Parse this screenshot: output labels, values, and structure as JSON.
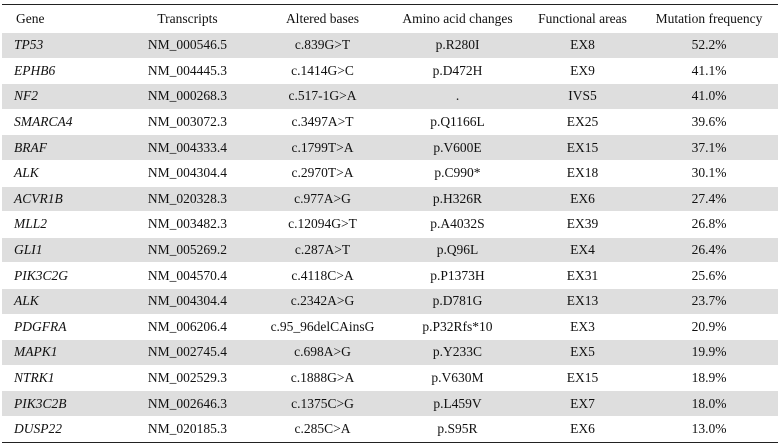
{
  "table": {
    "headers": [
      "Gene",
      "Transcripts",
      "Altered bases",
      "Amino acid changes",
      "Functional areas",
      "Mutation frequency"
    ],
    "rows": [
      [
        "TP53",
        "NM_000546.5",
        "c.839G>T",
        "p.R280I",
        "EX8",
        "52.2%"
      ],
      [
        "EPHB6",
        "NM_004445.3",
        "c.1414G>C",
        "p.D472H",
        "EX9",
        "41.1%"
      ],
      [
        "NF2",
        "NM_000268.3",
        "c.517-1G>A",
        ".",
        "IVS5",
        "41.0%"
      ],
      [
        "SMARCA4",
        "NM_003072.3",
        "c.3497A>T",
        "p.Q1166L",
        "EX25",
        "39.6%"
      ],
      [
        "BRAF",
        "NM_004333.4",
        "c.1799T>A",
        "p.V600E",
        "EX15",
        "37.1%"
      ],
      [
        "ALK",
        "NM_004304.4",
        "c.2970T>A",
        "p.C990*",
        "EX18",
        "30.1%"
      ],
      [
        "ACVR1B",
        "NM_020328.3",
        "c.977A>G",
        "p.H326R",
        "EX6",
        "27.4%"
      ],
      [
        "MLL2",
        "NM_003482.3",
        "c.12094G>T",
        "p.A4032S",
        "EX39",
        "26.8%"
      ],
      [
        "GLI1",
        "NM_005269.2",
        "c.287A>T",
        "p.Q96L",
        "EX4",
        "26.4%"
      ],
      [
        "PIK3C2G",
        "NM_004570.4",
        "c.4118C>A",
        "p.P1373H",
        "EX31",
        "25.6%"
      ],
      [
        "ALK",
        "NM_004304.4",
        "c.2342A>G",
        "p.D781G",
        "EX13",
        "23.7%"
      ],
      [
        "PDGFRA",
        "NM_006206.4",
        "c.95_96delCAinsG",
        "p.P32Rfs*10",
        "EX3",
        "20.9%"
      ],
      [
        "MAPK1",
        "NM_002745.4",
        "c.698A>G",
        "p.Y233C",
        "EX5",
        "19.9%"
      ],
      [
        "NTRK1",
        "NM_002529.3",
        "c.1888G>A",
        "p.V630M",
        "EX15",
        "18.9%"
      ],
      [
        "PIK3C2B",
        "NM_002646.3",
        "c.1375C>G",
        "p.L459V",
        "EX7",
        "18.0%"
      ],
      [
        "DUSP22",
        "NM_020185.3",
        "c.285C>A",
        "p.S95R",
        "EX6",
        "13.0%"
      ]
    ]
  }
}
